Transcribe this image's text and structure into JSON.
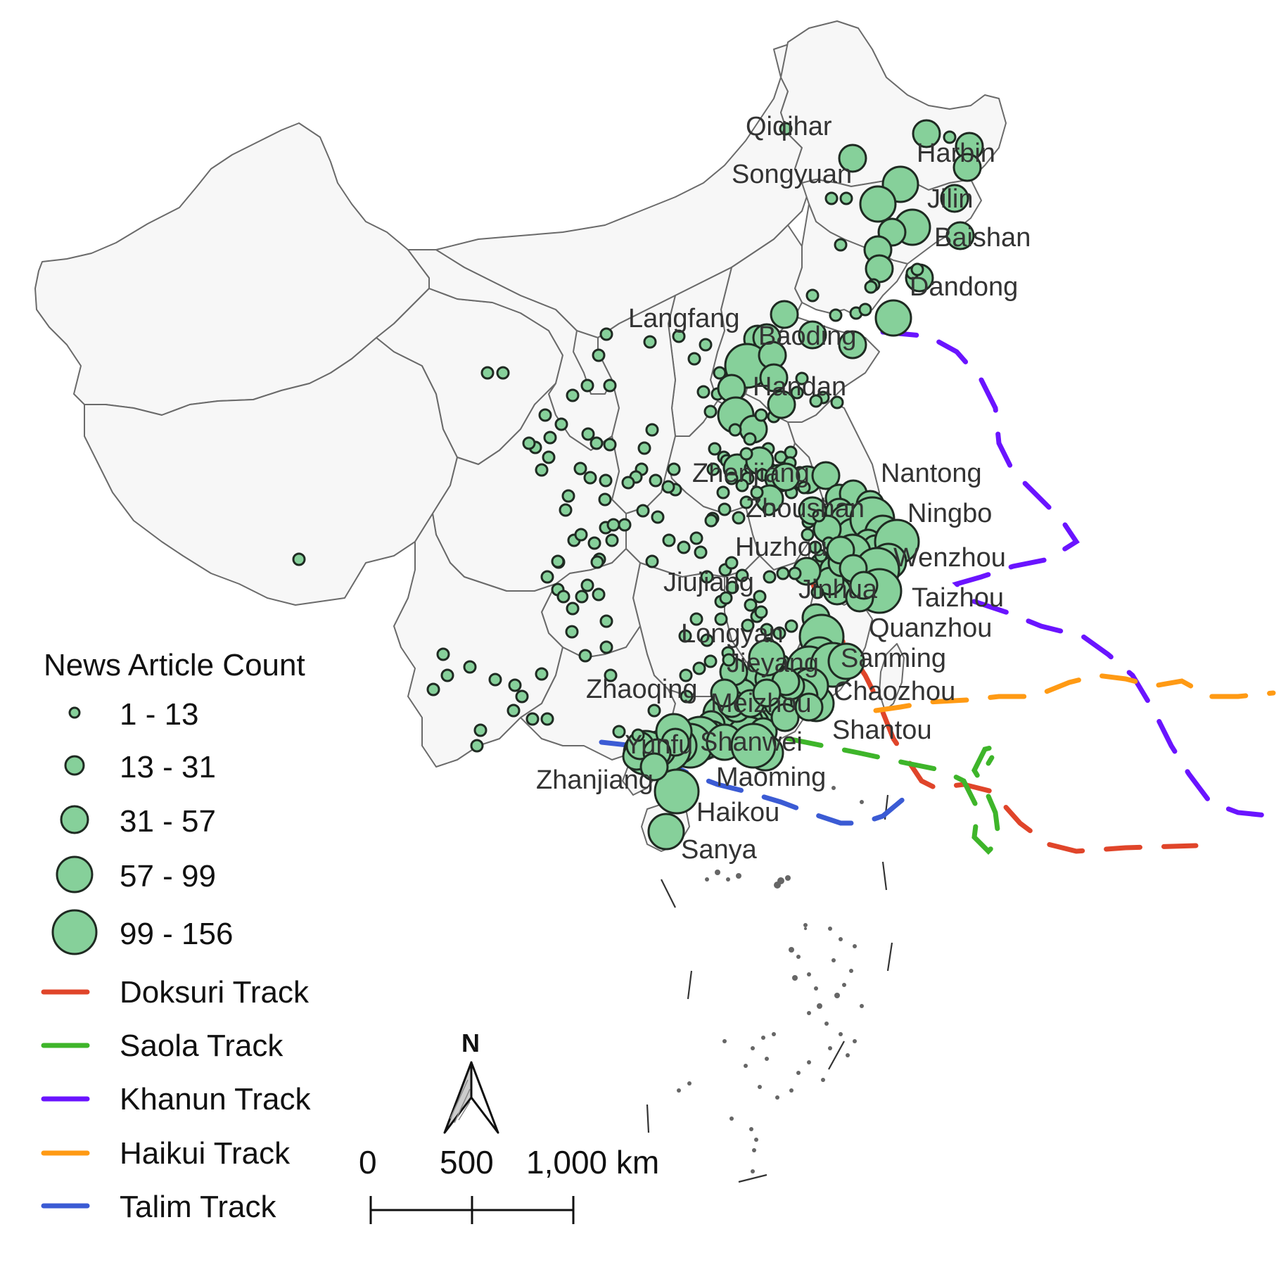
{
  "map": {
    "cities": [
      {
        "name": "Qiqihar"
      },
      {
        "name": "Harbin"
      },
      {
        "name": "Songyuan"
      },
      {
        "name": "Jilin"
      },
      {
        "name": "Baishan"
      },
      {
        "name": "Dandong"
      },
      {
        "name": "Langfang"
      },
      {
        "name": "Baoding"
      },
      {
        "name": "Handan"
      },
      {
        "name": "Nantong"
      },
      {
        "name": "Zhenjiang"
      },
      {
        "name": "Ningbo"
      },
      {
        "name": "Zhoushan"
      },
      {
        "name": "Huzhou"
      },
      {
        "name": "Wenzhou"
      },
      {
        "name": "Jiujiang"
      },
      {
        "name": "Jinhua"
      },
      {
        "name": "Taizhou"
      },
      {
        "name": "Quanzhou"
      },
      {
        "name": "Longyan"
      },
      {
        "name": "Sanming"
      },
      {
        "name": "Jieyang"
      },
      {
        "name": "Chaozhou"
      },
      {
        "name": "Zhaoqing"
      },
      {
        "name": "Meizhou"
      },
      {
        "name": "Shantou"
      },
      {
        "name": "Yunfu"
      },
      {
        "name": "Shanwei"
      },
      {
        "name": "Zhanjiang"
      },
      {
        "name": "Maoming"
      },
      {
        "name": "Haikou"
      },
      {
        "name": "Sanya"
      }
    ],
    "dot_color": "#86d09a"
  },
  "legend": {
    "title": "News Article Count",
    "sizes": [
      {
        "label": "1 - 13"
      },
      {
        "label": "13 - 31"
      },
      {
        "label": "31 - 57"
      },
      {
        "label": "57 - 99"
      },
      {
        "label": "99 - 156"
      }
    ],
    "tracks": [
      {
        "label": "Doksuri Track",
        "color": "#e0452a"
      },
      {
        "label": "Saola Track",
        "color": "#3eb52a"
      },
      {
        "label": "Khanun Track",
        "color": "#6a14ff"
      },
      {
        "label": "Haikui Track",
        "color": "#ff9a14"
      },
      {
        "label": "Talim Track",
        "color": "#3b5bd4"
      }
    ]
  },
  "north_arrow": {
    "label": "N"
  },
  "scale_bar": {
    "labels": [
      "0",
      "500",
      "1,000 km"
    ]
  }
}
